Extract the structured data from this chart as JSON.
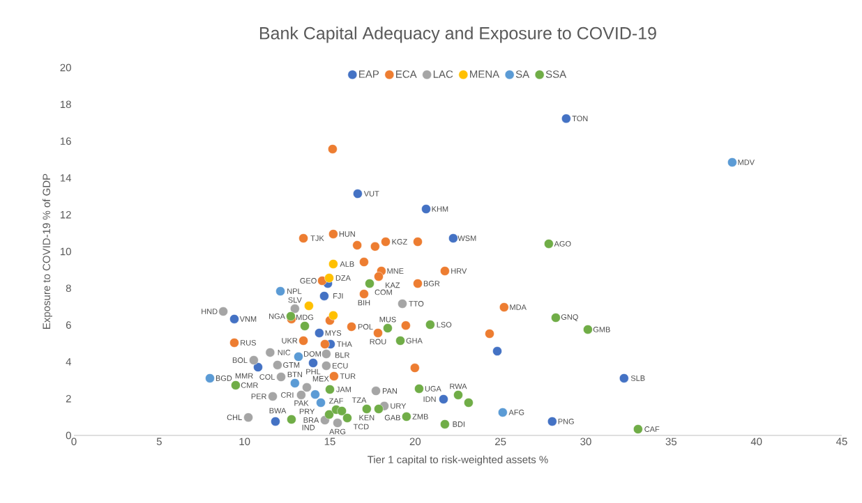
{
  "chart_data": {
    "type": "scatter",
    "title": "Bank Capital Adequacy and Exposure to COVID-19",
    "xlabel": "Tier 1 capital to risk-weighted assets %",
    "ylabel": "Exposure to COVID-19 % of GDP",
    "xlim": [
      0,
      45
    ],
    "ylim": [
      0,
      20
    ],
    "xticks": [
      0,
      5,
      10,
      15,
      20,
      25,
      30,
      35,
      40,
      45
    ],
    "yticks": [
      0,
      2,
      4,
      6,
      8,
      10,
      12,
      14,
      16,
      18,
      20
    ],
    "legend": "top",
    "marker": "circle",
    "series": [
      {
        "name": "EAP",
        "color": "#4472c4",
        "x": [
          28.85,
          16.63,
          20.64,
          22.23,
          14.88,
          14.67,
          9.4,
          14.38,
          15.04,
          24.81,
          10.79,
          14.02,
          11.81,
          21.66,
          32.24,
          28.03
        ],
        "values": [
          17.23,
          13.14,
          12.31,
          10.72,
          8.26,
          7.58,
          6.33,
          5.57,
          4.96,
          4.58,
          3.71,
          3.94,
          0.76,
          1.97,
          3.11,
          0.76
        ]
      },
      {
        "name": "ECA",
        "color": "#ed7d31",
        "x": [
          15.16,
          13.45,
          15.2,
          16.6,
          17.65,
          18.27,
          20.15,
          17.0,
          18.02,
          17.86,
          21.74,
          20.15,
          14.55,
          17.0,
          25.21,
          16.27,
          19.45,
          17.82,
          24.36,
          15.0,
          12.75,
          9.4,
          13.45,
          14.71,
          19.98,
          15.24
        ],
        "values": [
          15.57,
          10.72,
          10.95,
          10.34,
          10.27,
          10.53,
          10.53,
          9.43,
          8.94,
          8.64,
          8.94,
          8.26,
          8.41,
          7.69,
          6.97,
          5.91,
          5.98,
          5.57,
          5.53,
          6.25,
          6.33,
          5.04,
          5.15,
          4.96,
          3.67,
          3.22
        ]
      },
      {
        "name": "LAC",
        "color": "#a5a5a5",
        "x": [
          8.75,
          12.95,
          19.25,
          11.5,
          10.54,
          14.79,
          14.79,
          11.93,
          12.14,
          13.65,
          13.32,
          11.65,
          17.7,
          18.19,
          10.22,
          14.71,
          15.45
        ],
        "values": [
          6.74,
          6.89,
          7.16,
          4.51,
          4.09,
          4.43,
          3.79,
          3.83,
          3.18,
          2.61,
          2.2,
          2.12,
          2.42,
          1.6,
          0.98,
          0.83,
          0.68
        ]
      },
      {
        "name": "MENA",
        "color": "#ffc000",
        "x": [
          15.2,
          14.96,
          13.77,
          15.2
        ],
        "values": [
          9.32,
          8.56,
          7.05,
          6.52
        ]
      },
      {
        "name": "SA",
        "color": "#5b9bd5",
        "x": [
          38.58,
          12.1,
          7.97,
          13.16,
          12.95,
          14.14,
          14.47,
          25.13
        ],
        "values": [
          14.85,
          7.84,
          3.11,
          4.28,
          2.84,
          2.23,
          1.78,
          1.25
        ]
      },
      {
        "name": "SSA",
        "color": "#70ad47",
        "x": [
          27.83,
          17.33,
          28.24,
          30.12,
          20.88,
          19.13,
          18.39,
          12.71,
          13.53,
          9.48,
          20.23,
          22.52,
          23.13,
          21.74,
          19.49,
          33.06,
          12.75,
          15.0,
          14.96,
          15.37,
          15.7,
          16.02,
          17.16,
          17.86
        ],
        "values": [
          10.42,
          8.26,
          6.4,
          5.76,
          6.02,
          5.15,
          5.83,
          6.48,
          5.95,
          2.73,
          2.54,
          2.2,
          1.78,
          0.61,
          1.02,
          0.34,
          0.87,
          2.5,
          1.14,
          1.4,
          1.33,
          0.95,
          1.44,
          1.44
        ]
      }
    ],
    "annotations": [
      {
        "text": "TON",
        "x": 28.85,
        "y": 17.23
      },
      {
        "text": "MDV",
        "x": 38.58,
        "y": 14.85
      },
      {
        "text": "VUT",
        "x": 16.63,
        "y": 13.14
      },
      {
        "text": "KHM",
        "x": 20.64,
        "y": 12.31
      },
      {
        "text": "WSM",
        "x": 22.23,
        "y": 10.72
      },
      {
        "text": "AGO",
        "x": 27.83,
        "y": 10.42
      },
      {
        "text": "TJK",
        "x": 13.45,
        "y": 10.72
      },
      {
        "text": "HUN",
        "x": 15.2,
        "y": 10.95
      },
      {
        "text": "KGZ",
        "x": 18.27,
        "y": 10.53
      },
      {
        "text": "ALB",
        "x": 15.2,
        "y": 9.32
      },
      {
        "text": "MNE",
        "x": 18.02,
        "y": 8.94
      },
      {
        "text": "DZA",
        "x": 14.96,
        "y": 8.56
      },
      {
        "text": "KAZ",
        "x": 17.86,
        "y": 8.64
      },
      {
        "text": "HRV",
        "x": 21.74,
        "y": 8.94
      },
      {
        "text": "BGR",
        "x": 20.15,
        "y": 8.26
      },
      {
        "text": "COM",
        "x": 17.33,
        "y": 8.26
      },
      {
        "text": "GEO",
        "x": 14.55,
        "y": 8.41
      },
      {
        "text": "NPL",
        "x": 12.1,
        "y": 7.84
      },
      {
        "text": "BIH",
        "x": 17.0,
        "y": 7.69
      },
      {
        "text": "FJI",
        "x": 14.67,
        "y": 7.58
      },
      {
        "text": "TTO",
        "x": 19.25,
        "y": 7.16
      },
      {
        "text": "MDA",
        "x": 25.21,
        "y": 6.97
      },
      {
        "text": "HND",
        "x": 8.75,
        "y": 6.74
      },
      {
        "text": "VNM",
        "x": 9.4,
        "y": 6.33
      },
      {
        "text": "SLV",
        "x": 12.95,
        "y": 6.89
      },
      {
        "text": "NGA",
        "x": 12.71,
        "y": 6.48
      },
      {
        "text": "GNQ",
        "x": 28.24,
        "y": 6.4
      },
      {
        "text": "LSO",
        "x": 20.88,
        "y": 6.02
      },
      {
        "text": "MUS",
        "x": 18.39,
        "y": 5.83
      },
      {
        "text": "GMB",
        "x": 30.12,
        "y": 5.76
      },
      {
        "text": "POL",
        "x": 16.27,
        "y": 5.91
      },
      {
        "text": "MDG",
        "x": 13.53,
        "y": 5.95
      },
      {
        "text": "MYS",
        "x": 14.38,
        "y": 5.57
      },
      {
        "text": "ROU",
        "x": 17.82,
        "y": 5.57
      },
      {
        "text": "GHA",
        "x": 19.13,
        "y": 5.15
      },
      {
        "text": "RUS",
        "x": 9.4,
        "y": 5.04
      },
      {
        "text": "UKR",
        "x": 13.45,
        "y": 5.15
      },
      {
        "text": "BLR",
        "x": 14.71,
        "y": 4.96
      },
      {
        "text": "THA",
        "x": 15.04,
        "y": 4.96
      },
      {
        "text": "NIC",
        "x": 11.5,
        "y": 4.51
      },
      {
        "text": "DOM",
        "x": 14.79,
        "y": 4.43
      },
      {
        "text": "BOL",
        "x": 10.54,
        "y": 4.09
      },
      {
        "text": "GTM",
        "x": 11.93,
        "y": 3.83
      },
      {
        "text": "MMR",
        "x": 10.79,
        "y": 3.71
      },
      {
        "text": "PHL",
        "x": 14.02,
        "y": 3.94
      },
      {
        "text": "ECU",
        "x": 14.79,
        "y": 3.79
      },
      {
        "text": "BGD",
        "x": 7.97,
        "y": 3.11
      },
      {
        "text": "SLB",
        "x": 32.24,
        "y": 3.11
      },
      {
        "text": "COL",
        "x": 12.14,
        "y": 3.18
      },
      {
        "text": "TUR",
        "x": 15.24,
        "y": 3.22
      },
      {
        "text": "CMR",
        "x": 9.48,
        "y": 2.73
      },
      {
        "text": "BTN",
        "x": 12.95,
        "y": 2.84
      },
      {
        "text": "CRI",
        "x": 13.32,
        "y": 2.2
      },
      {
        "text": "ZAF",
        "x": 15.37,
        "y": 1.4
      },
      {
        "text": "JAM",
        "x": 15.0,
        "y": 2.5
      },
      {
        "text": "PAN",
        "x": 17.7,
        "y": 2.42
      },
      {
        "text": "UGA",
        "x": 20.23,
        "y": 2.54
      },
      {
        "text": "RWA",
        "x": 22.52,
        "y": 2.2
      },
      {
        "text": "IDN",
        "x": 21.66,
        "y": 1.97
      },
      {
        "text": "PER",
        "x": 11.65,
        "y": 2.12
      },
      {
        "text": "PRY",
        "x": 14.47,
        "y": 1.78
      },
      {
        "text": "PAK",
        "x": 14.14,
        "y": 2.23
      },
      {
        "text": "MEX",
        "x": 13.65,
        "y": 2.61
      },
      {
        "text": "IND",
        "x": 14.96,
        "y": 1.14
      },
      {
        "text": "TZA",
        "x": 15.7,
        "y": 1.33
      },
      {
        "text": "KEN",
        "x": 17.16,
        "y": 1.44
      },
      {
        "text": "GAB",
        "x": 17.86,
        "y": 1.44
      },
      {
        "text": "URY",
        "x": 18.19,
        "y": 1.6
      },
      {
        "text": "ZMB",
        "x": 19.49,
        "y": 1.02
      },
      {
        "text": "AFG",
        "x": 25.13,
        "y": 1.25
      },
      {
        "text": "PNG",
        "x": 28.03,
        "y": 0.76
      },
      {
        "text": "CAF",
        "x": 33.06,
        "y": 0.34
      },
      {
        "text": "BDI",
        "x": 21.74,
        "y": 0.61
      },
      {
        "text": "CHL",
        "x": 10.22,
        "y": 0.98
      },
      {
        "text": "BWA",
        "x": 12.75,
        "y": 0.87
      },
      {
        "text": "BRA",
        "x": 14.71,
        "y": 0.83
      },
      {
        "text": "ARG",
        "x": 15.45,
        "y": 0.68
      },
      {
        "text": "TCD",
        "x": 16.02,
        "y": 0.95
      }
    ]
  }
}
